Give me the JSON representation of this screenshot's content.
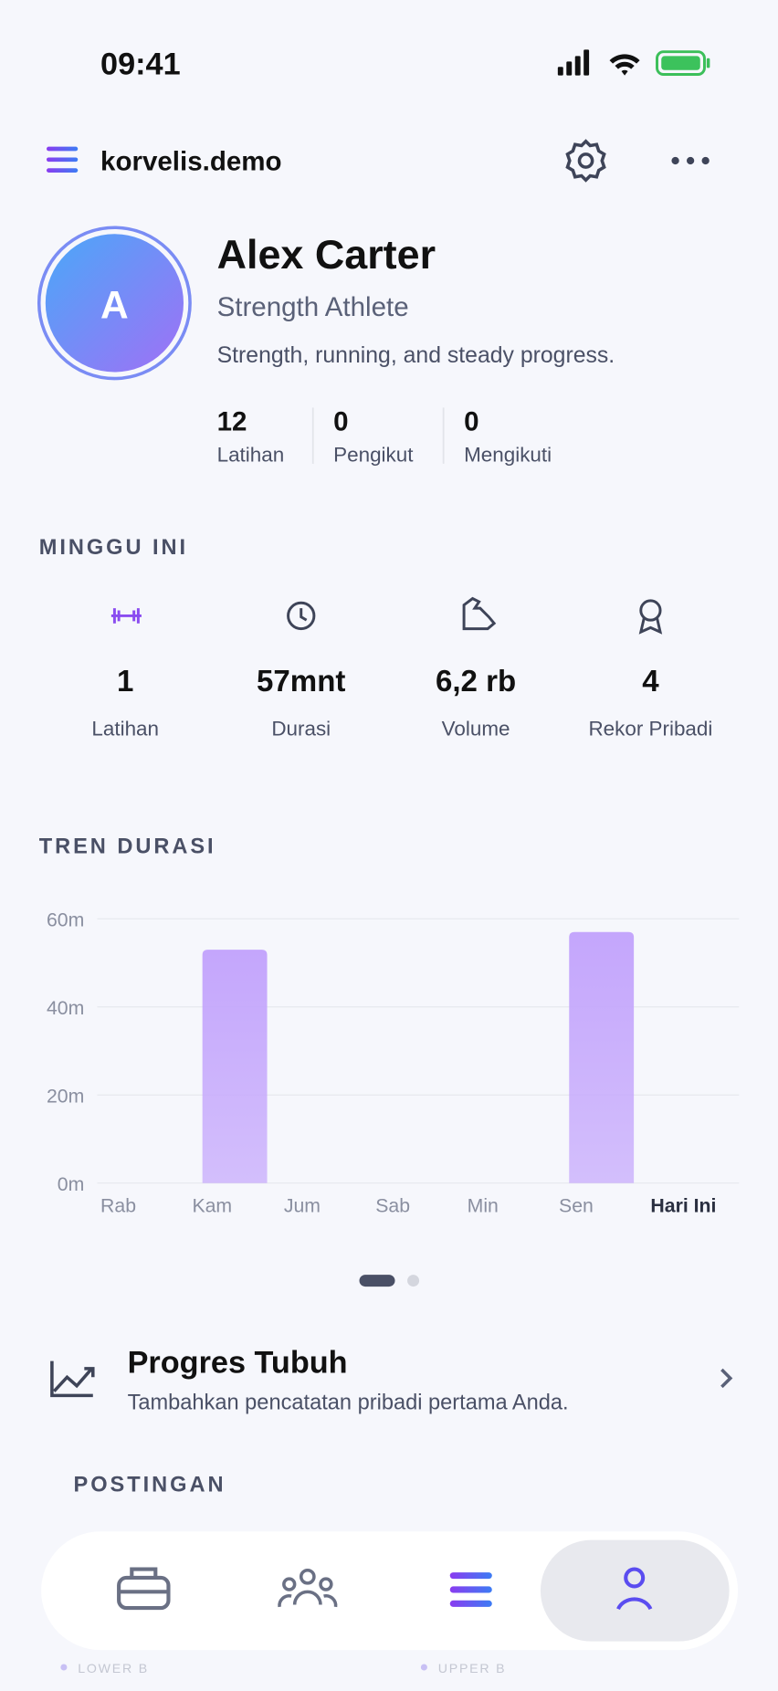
{
  "status_bar": {
    "time": "09:41"
  },
  "header": {
    "title": "korvelis.demo"
  },
  "profile": {
    "avatar_initial": "A",
    "name": "Alex Carter",
    "role": "Strength Athlete",
    "bio": "Strength, running, and steady progress.",
    "stats": [
      {
        "value": 12,
        "label": "Latihan"
      },
      {
        "value": 0,
        "label": "Pengikut"
      },
      {
        "value": 0,
        "label": "Mengikuti"
      }
    ]
  },
  "week": {
    "title": "MINGGU INI",
    "stats": [
      {
        "value": 1,
        "label": "Latihan"
      },
      {
        "value": "57mnt",
        "label": "Durasi"
      },
      {
        "value": "6,2 rb",
        "label": "Volume"
      },
      {
        "value": 4,
        "label": "Rekor Pribadi"
      }
    ]
  },
  "chart_data": {
    "type": "bar",
    "title": "TREN DURASI",
    "categories": [
      "Rab",
      "Kam",
      "Jum",
      "Sab",
      "Min",
      "Sen",
      "Hari Ini"
    ],
    "values": [
      0,
      53,
      0,
      0,
      0,
      57,
      0
    ],
    "color": "#c4a6fc",
    "ylim": [
      0,
      60
    ],
    "yticks": [
      {
        "value": 0,
        "label": "0m"
      },
      {
        "value": 20,
        "label": "20m"
      },
      {
        "value": 40,
        "label": "40m"
      },
      {
        "value": 60,
        "label": "60m"
      }
    ],
    "grid": true
  },
  "progress_card": {
    "title": "Progres Tubuh",
    "subtitle": "Tambahkan pencatatan pribadi pertama Anda."
  },
  "posts": {
    "title": "POSTINGAN",
    "items": [
      "LOWER B",
      "UPPER B"
    ]
  }
}
